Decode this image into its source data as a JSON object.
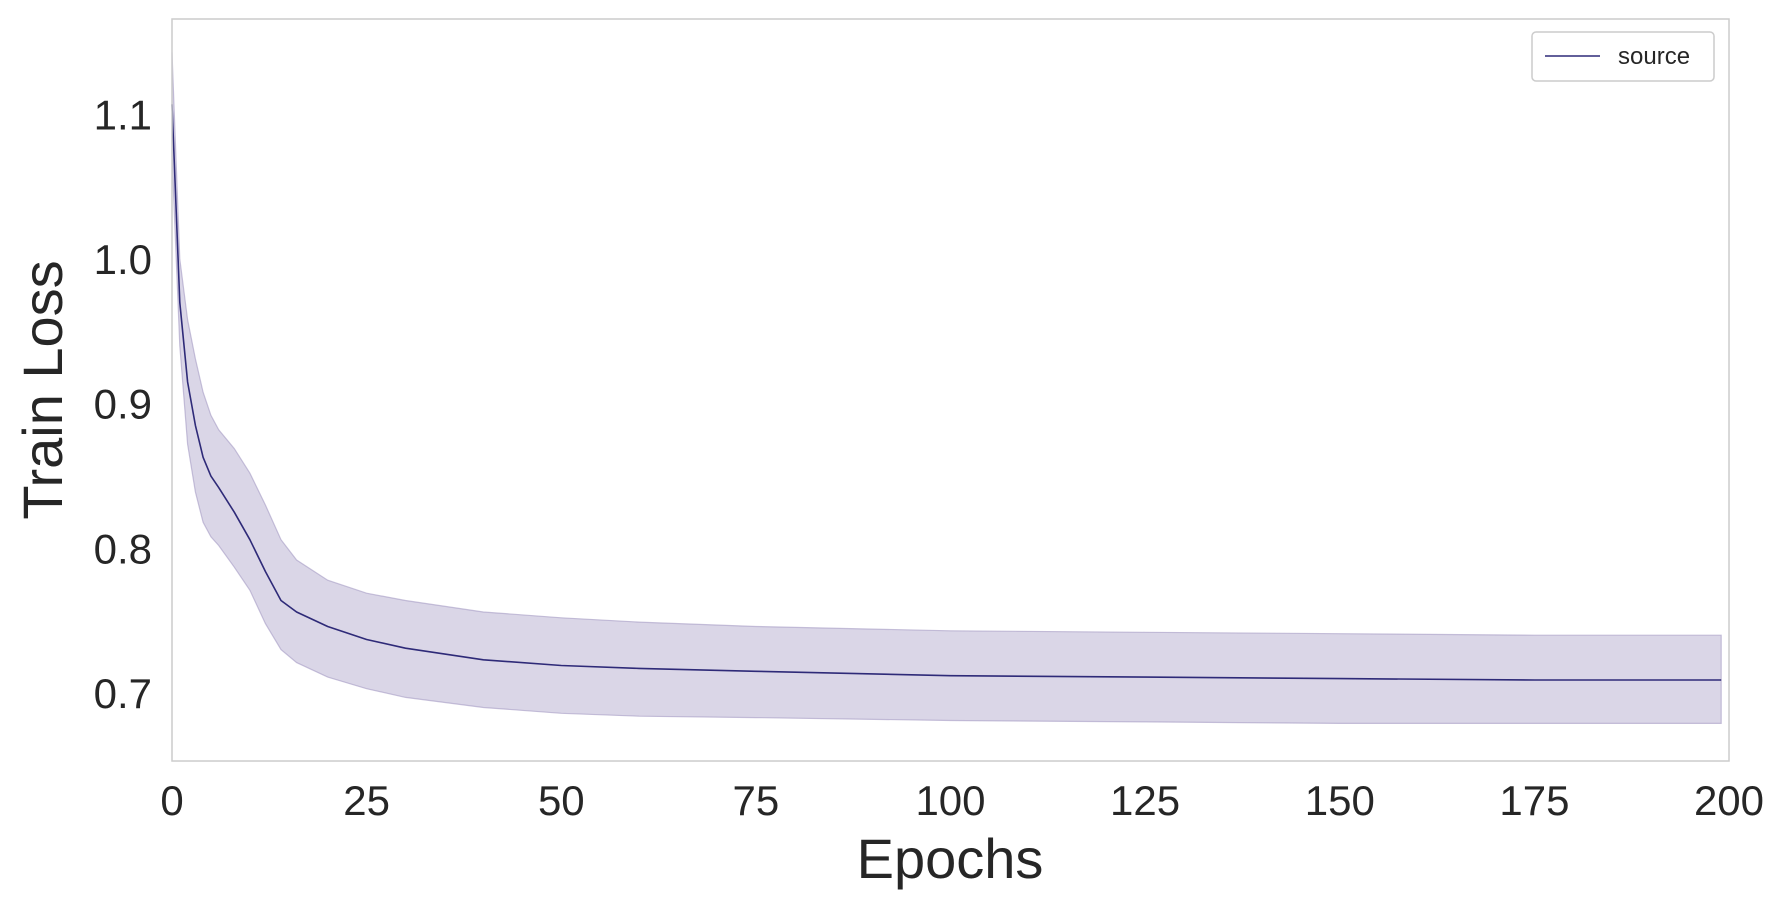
{
  "chart_data": {
    "type": "line",
    "xlabel": "Epochs",
    "ylabel": "Train Loss",
    "xlim": [
      0,
      200
    ],
    "ylim": [
      0.653,
      1.166
    ],
    "xticks": [
      0,
      25,
      50,
      75,
      100,
      125,
      150,
      175,
      200
    ],
    "yticks": [
      0.7,
      0.8,
      0.9,
      1.0,
      1.1
    ],
    "xtick_labels": [
      "0",
      "25",
      "50",
      "75",
      "100",
      "125",
      "150",
      "175",
      "200"
    ],
    "ytick_labels": [
      "0.7",
      "0.8",
      "0.9",
      "1.0",
      "1.1"
    ],
    "grid": false,
    "legend_position": "upper-right",
    "colors": {
      "line": "#2e2a78",
      "band_fill": "#9f93c0",
      "frame": "#cccccc",
      "text": "#262626"
    },
    "series": [
      {
        "name": "source",
        "x": [
          0,
          1,
          2,
          3,
          4,
          5,
          6,
          8,
          10,
          12,
          14,
          16,
          20,
          25,
          30,
          40,
          50,
          60,
          75,
          100,
          125,
          150,
          175,
          199
        ],
        "y": [
          1.107,
          0.97,
          0.915,
          0.885,
          0.863,
          0.85,
          0.842,
          0.825,
          0.806,
          0.784,
          0.764,
          0.756,
          0.746,
          0.737,
          0.731,
          0.723,
          0.719,
          0.717,
          0.715,
          0.712,
          0.711,
          0.71,
          0.709,
          0.709
        ],
        "upper": [
          1.143,
          1.0,
          0.958,
          0.931,
          0.908,
          0.892,
          0.882,
          0.869,
          0.852,
          0.83,
          0.806,
          0.792,
          0.778,
          0.769,
          0.764,
          0.756,
          0.752,
          0.749,
          0.746,
          0.743,
          0.742,
          0.741,
          0.74,
          0.74
        ],
        "lower": [
          1.071,
          0.94,
          0.872,
          0.839,
          0.818,
          0.808,
          0.802,
          0.787,
          0.771,
          0.748,
          0.73,
          0.721,
          0.711,
          0.703,
          0.697,
          0.69,
          0.686,
          0.684,
          0.683,
          0.681,
          0.68,
          0.679,
          0.679,
          0.679
        ]
      }
    ]
  }
}
